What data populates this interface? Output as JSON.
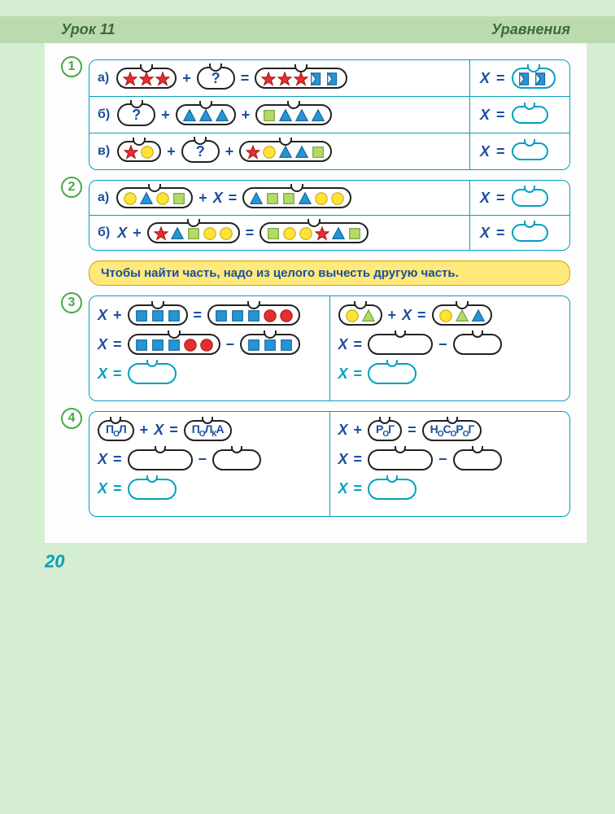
{
  "header": {
    "left": "Урок 11",
    "right": "Уравнения"
  },
  "page_number": "20",
  "colors": {
    "red": "#e52e2e",
    "red_stroke": "#a81818",
    "blue": "#2595d4",
    "blue_stroke": "#0d5f96",
    "yellow": "#ffe335",
    "yellow_stroke": "#c7a800",
    "green": "#b4d966",
    "green_stroke": "#6a9a2e"
  },
  "labels": {
    "a": "а)",
    "b": "б)",
    "v": "в)",
    "plus": "+",
    "minus": "−",
    "eq": "=",
    "x": "X",
    "q": "?"
  },
  "hint": "Чтобы найти часть, надо из целого вычесть другую часть.",
  "ex1": {
    "num": "1",
    "a": {
      "left": [
        "star-red",
        "star-red",
        "star-red"
      ],
      "right": [
        "star-red",
        "star-red",
        "star-red",
        "flag-blue",
        "flag-blue"
      ],
      "answer": [
        "flag-blue",
        "flag-blue"
      ]
    },
    "b": {
      "mid": [
        "tri-blue",
        "tri-blue",
        "tri-blue"
      ],
      "right": [
        "sq-green",
        "tri-blue",
        "tri-blue",
        "tri-blue"
      ]
    },
    "v": {
      "left": [
        "star-red",
        "circ-yellow"
      ],
      "right": [
        "star-red",
        "circ-yellow",
        "tri-blue",
        "tri-blue",
        "sq-green"
      ]
    }
  },
  "ex2": {
    "num": "2",
    "a": {
      "left": [
        "circ-yellow",
        "tri-blue",
        "circ-yellow",
        "sq-green"
      ],
      "right": [
        "tri-blue",
        "sq-green",
        "sq-green",
        "tri-blue",
        "circ-yellow",
        "circ-yellow"
      ]
    },
    "b": {
      "mid": [
        "star-red",
        "tri-blue",
        "sq-green",
        "circ-yellow",
        "circ-yellow"
      ],
      "right": [
        "sq-green",
        "circ-yellow",
        "circ-yellow",
        "star-red",
        "tri-blue",
        "sq-green"
      ]
    }
  },
  "ex3": {
    "num": "3",
    "left_a": [
      "sq-blue",
      "sq-blue",
      "sq-blue"
    ],
    "left_b": [
      "sq-blue",
      "sq-blue",
      "sq-blue",
      "circ-red",
      "circ-red"
    ],
    "left_c": [
      "sq-blue",
      "sq-blue",
      "sq-blue",
      "circ-red",
      "circ-red"
    ],
    "left_d": [
      "sq-blue",
      "sq-blue",
      "sq-blue"
    ],
    "right_a": [
      "circ-yellow",
      "tri-green"
    ],
    "right_b": [
      "circ-yellow",
      "tri-green",
      "tri-blue"
    ]
  },
  "ex4": {
    "num": "4",
    "w1": "ПОЛ",
    "w2": "ПОЛКА",
    "w3": "РОГ",
    "w4": "НОСОРОГ"
  }
}
